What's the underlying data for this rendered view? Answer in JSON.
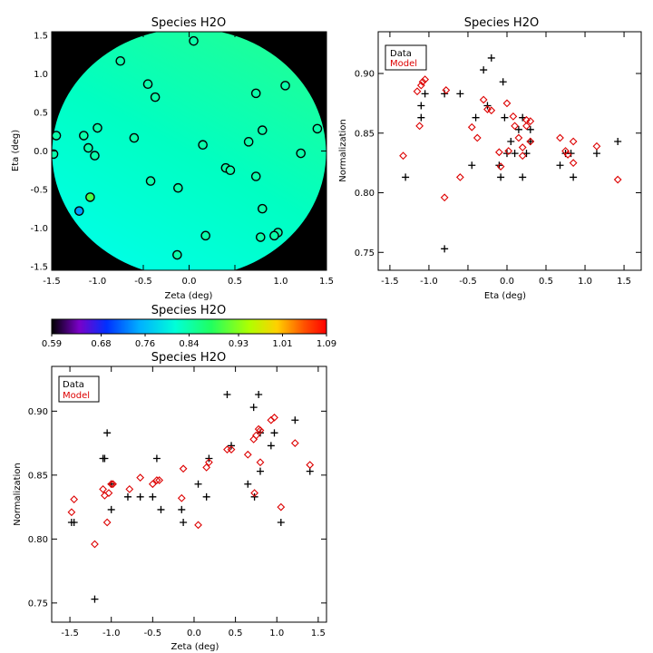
{
  "chart_data": [
    {
      "id": "map",
      "type": "heatmap",
      "title": "Species H2O",
      "xlabel": "Zeta (deg)",
      "ylabel": "Eta (deg)",
      "xlim": [
        -1.5,
        1.5
      ],
      "ylim": [
        -1.55,
        1.55
      ],
      "xticks": [
        "-1.5",
        "-1.0",
        "-0.5",
        "0.0",
        "0.5",
        "1.0",
        "1.5"
      ],
      "yticks": [
        "-1.5",
        "-1.0",
        "-0.5",
        "0.0",
        "0.5",
        "1.0",
        "1.5"
      ],
      "field_boundary": "circle",
      "points": [
        {
          "x": 0.05,
          "y": 1.43,
          "value": 0.84
        },
        {
          "x": -0.75,
          "y": 1.17,
          "value": 0.84
        },
        {
          "x": -0.45,
          "y": 0.87,
          "value": 0.84
        },
        {
          "x": -0.37,
          "y": 0.7,
          "value": 0.84
        },
        {
          "x": 1.05,
          "y": 0.85,
          "value": 0.84
        },
        {
          "x": 0.73,
          "y": 0.75,
          "value": 0.84
        },
        {
          "x": -1.0,
          "y": 0.3,
          "value": 0.84
        },
        {
          "x": -1.15,
          "y": 0.2,
          "value": 0.84
        },
        {
          "x": -1.45,
          "y": 0.2,
          "value": 0.84
        },
        {
          "x": -0.6,
          "y": 0.17,
          "value": 0.84
        },
        {
          "x": 0.8,
          "y": 0.27,
          "value": 0.84
        },
        {
          "x": 1.4,
          "y": 0.29,
          "value": 0.84
        },
        {
          "x": 0.65,
          "y": 0.12,
          "value": 0.84
        },
        {
          "x": 0.15,
          "y": 0.08,
          "value": 0.84
        },
        {
          "x": -1.1,
          "y": 0.04,
          "value": 0.84
        },
        {
          "x": -1.48,
          "y": -0.04,
          "value": 0.84
        },
        {
          "x": -1.03,
          "y": -0.06,
          "value": 0.84
        },
        {
          "x": 1.22,
          "y": -0.03,
          "value": 0.84
        },
        {
          "x": 0.4,
          "y": -0.22,
          "value": 0.84
        },
        {
          "x": 0.45,
          "y": -0.25,
          "value": 0.84
        },
        {
          "x": 0.73,
          "y": -0.33,
          "value": 0.84
        },
        {
          "x": -0.42,
          "y": -0.39,
          "value": 0.84
        },
        {
          "x": -0.12,
          "y": -0.48,
          "value": 0.84
        },
        {
          "x": -1.08,
          "y": -0.6,
          "value": 0.9
        },
        {
          "x": 0.8,
          "y": -0.75,
          "value": 0.84
        },
        {
          "x": -1.2,
          "y": -0.78,
          "value": 0.74
        },
        {
          "x": 0.18,
          "y": -1.1,
          "value": 0.84
        },
        {
          "x": 0.78,
          "y": -1.12,
          "value": 0.84
        },
        {
          "x": 0.97,
          "y": -1.06,
          "value": 0.84
        },
        {
          "x": 0.93,
          "y": -1.1,
          "value": 0.84
        },
        {
          "x": -0.13,
          "y": -1.35,
          "value": 0.84
        }
      ],
      "colorbar": {
        "title": "Species H2O",
        "range": [
          0.59,
          1.09
        ],
        "ticks": [
          "0.59",
          "0.68",
          "0.76",
          "0.84",
          "0.93",
          "1.01",
          "1.09"
        ],
        "colormap": "rainbow"
      }
    },
    {
      "id": "eta",
      "type": "scatter",
      "title": "Species H2O",
      "xlabel": "Eta (deg)",
      "ylabel": "Normalization",
      "xlim": [
        -1.65,
        1.72
      ],
      "ylim": [
        0.735,
        0.935
      ],
      "xticks": [
        "-1.5",
        "-1.0",
        "-0.5",
        "0.0",
        "0.5",
        "1.0",
        "1.5"
      ],
      "yticks": [
        "0.75",
        "0.80",
        "0.85",
        "0.90"
      ],
      "legend": {
        "position": "top-left",
        "entries": [
          "Data",
          "Model"
        ]
      },
      "series": [
        {
          "name": "Data",
          "marker": "plus",
          "color": "#000000",
          "x": [
            -1.3,
            -1.15,
            -1.1,
            -1.1,
            -1.05,
            -0.8,
            -0.8,
            -0.6,
            -0.45,
            -0.4,
            -0.3,
            -0.25,
            -0.2,
            -0.1,
            -0.08,
            -0.05,
            -0.03,
            0.0,
            0.05,
            0.1,
            0.15,
            0.2,
            0.2,
            0.25,
            0.3,
            0.3,
            0.68,
            0.75,
            0.82,
            0.85,
            1.15,
            1.42
          ],
          "y": [
            0.813,
            0.913,
            0.873,
            0.863,
            0.883,
            0.753,
            0.883,
            0.883,
            0.823,
            0.863,
            0.903,
            0.873,
            0.913,
            0.823,
            0.813,
            0.893,
            0.863,
            0.833,
            0.843,
            0.833,
            0.853,
            0.813,
            0.863,
            0.833,
            0.853,
            0.843,
            0.823,
            0.833,
            0.833,
            0.813,
            0.833,
            0.843
          ]
        },
        {
          "name": "Model",
          "marker": "diamond",
          "color": "#dd0000",
          "x": [
            -1.33,
            -1.15,
            -1.12,
            -1.1,
            -1.08,
            -1.05,
            -0.8,
            -0.78,
            -0.6,
            -0.45,
            -0.38,
            -0.3,
            -0.25,
            -0.2,
            -0.1,
            -0.08,
            0.0,
            0.02,
            0.08,
            0.1,
            0.15,
            0.2,
            0.2,
            0.25,
            0.25,
            0.3,
            0.3,
            0.68,
            0.75,
            0.78,
            0.85,
            0.85,
            1.15,
            1.42
          ],
          "y": [
            0.831,
            0.885,
            0.856,
            0.89,
            0.893,
            0.895,
            0.796,
            0.886,
            0.813,
            0.855,
            0.846,
            0.878,
            0.87,
            0.869,
            0.834,
            0.822,
            0.875,
            0.835,
            0.864,
            0.856,
            0.846,
            0.838,
            0.831,
            0.861,
            0.856,
            0.86,
            0.843,
            0.846,
            0.835,
            0.832,
            0.825,
            0.843,
            0.839,
            0.811
          ]
        }
      ]
    },
    {
      "id": "zeta",
      "type": "scatter",
      "title": "Species H2O",
      "xlabel": "Zeta (deg)",
      "ylabel": "Normalization",
      "xlim": [
        -1.72,
        1.6
      ],
      "ylim": [
        0.735,
        0.935
      ],
      "xticks": [
        "-1.5",
        "-1.0",
        "-0.5",
        "0.0",
        "0.5",
        "1.0",
        "1.5"
      ],
      "yticks": [
        "0.75",
        "0.80",
        "0.85",
        "0.90"
      ],
      "legend": {
        "position": "top-left",
        "entries": [
          "Data",
          "Model"
        ]
      },
      "series": [
        {
          "name": "Data",
          "marker": "plus",
          "color": "#000000",
          "x": [
            -1.48,
            -1.45,
            -1.2,
            -1.1,
            -1.08,
            -1.05,
            -1.0,
            -1.0,
            -0.8,
            -0.65,
            -0.5,
            -0.45,
            -0.4,
            -0.15,
            -0.13,
            0.05,
            0.15,
            0.18,
            0.4,
            0.45,
            0.65,
            0.72,
            0.73,
            0.78,
            0.8,
            0.8,
            0.93,
            0.97,
            1.05,
            1.22,
            1.4
          ],
          "y": [
            0.813,
            0.813,
            0.753,
            0.863,
            0.863,
            0.883,
            0.823,
            0.843,
            0.833,
            0.833,
            0.833,
            0.863,
            0.823,
            0.823,
            0.813,
            0.843,
            0.833,
            0.863,
            0.913,
            0.873,
            0.843,
            0.903,
            0.833,
            0.913,
            0.883,
            0.853,
            0.873,
            0.883,
            0.813,
            0.893,
            0.853
          ]
        },
        {
          "name": "Model",
          "marker": "diamond",
          "color": "#dd0000",
          "x": [
            -1.48,
            -1.45,
            -1.2,
            -1.1,
            -1.08,
            -1.05,
            -1.03,
            -1.0,
            -0.98,
            -0.78,
            -0.65,
            -0.5,
            -0.45,
            -0.42,
            -0.15,
            -0.13,
            0.05,
            0.15,
            0.18,
            0.4,
            0.45,
            0.65,
            0.72,
            0.73,
            0.75,
            0.78,
            0.8,
            0.8,
            0.93,
            0.97,
            1.05,
            1.22,
            1.4
          ],
          "y": [
            0.821,
            0.831,
            0.796,
            0.839,
            0.834,
            0.813,
            0.836,
            0.843,
            0.843,
            0.839,
            0.848,
            0.843,
            0.846,
            0.846,
            0.832,
            0.855,
            0.811,
            0.856,
            0.86,
            0.87,
            0.87,
            0.866,
            0.878,
            0.836,
            0.881,
            0.886,
            0.885,
            0.86,
            0.893,
            0.895,
            0.825,
            0.875,
            0.858
          ]
        }
      ]
    }
  ]
}
